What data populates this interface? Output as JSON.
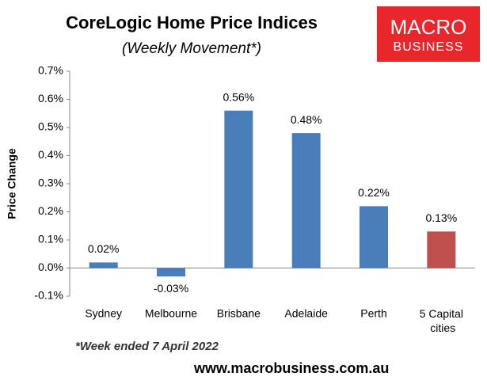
{
  "chart_data": {
    "type": "bar",
    "title": "CoreLogic Home Price Indices",
    "subtitle": "(Weekly Movement*)",
    "y_label": "Price Change",
    "footnote": "*Week ended 7 April 2022",
    "source": "www.macrobusiness.com.au",
    "logo": [
      "MACRO",
      "BUSINESS"
    ],
    "categories": [
      "Sydney",
      "Melbourne",
      "Brisbane",
      "Adelaide",
      "Perth",
      "5 Capital cities"
    ],
    "values": [
      0.02,
      -0.03,
      0.56,
      0.48,
      0.22,
      0.13
    ],
    "value_labels": [
      "0.02%",
      "-0.03%",
      "0.56%",
      "0.48%",
      "0.22%",
      "0.13%"
    ],
    "colors": [
      "#4a7ebb",
      "#4a7ebb",
      "#4a7ebb",
      "#4a7ebb",
      "#4a7ebb",
      "#c0504d"
    ],
    "ylim": [
      -0.1,
      0.7
    ],
    "yticks": [
      {
        "value": -0.1,
        "label": "-0.1%"
      },
      {
        "value": 0,
        "label": "0.0%"
      },
      {
        "value": 0.1,
        "label": "0.1%"
      },
      {
        "value": 0.2,
        "label": "0.2%"
      },
      {
        "value": 0.3,
        "label": "0.3%"
      },
      {
        "value": 0.4,
        "label": "0.4%"
      },
      {
        "value": 0.5,
        "label": "0.5%"
      },
      {
        "value": 0.6,
        "label": "0.6%"
      },
      {
        "value": 0.7,
        "label": "0.7%"
      }
    ],
    "grid": false
  }
}
